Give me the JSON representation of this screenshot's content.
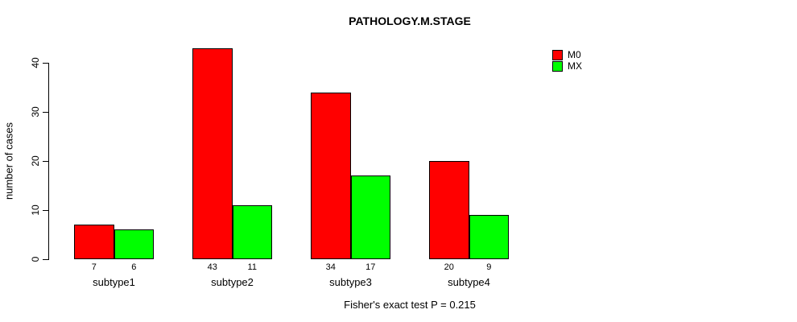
{
  "title": "PATHOLOGY.M.STAGE",
  "caption": "Fisher's exact test P = 0.215",
  "chart_data": {
    "type": "bar",
    "title": "PATHOLOGY.M.STAGE",
    "categories": [
      "subtype1",
      "subtype2",
      "subtype3",
      "subtype4"
    ],
    "series": [
      {
        "name": "M0",
        "color": "#FF0000",
        "values": [
          7,
          43,
          34,
          20
        ]
      },
      {
        "name": "MX",
        "color": "#00FF00",
        "values": [
          6,
          11,
          17,
          9
        ]
      }
    ],
    "xlabel": "",
    "ylabel": "number of cases",
    "ylim": [
      0,
      40
    ],
    "yticks": [
      0,
      10,
      20,
      30,
      40
    ],
    "grid": false,
    "legend_position": "top-right",
    "bar_value_labels": [
      [
        "7",
        "43",
        "34",
        "20"
      ],
      [
        "6",
        "11",
        "17",
        "9"
      ]
    ],
    "annotation": "Fisher's exact test P = 0.215",
    "bar_border_color": "#000000",
    "background_color": "#FFFFFF"
  }
}
